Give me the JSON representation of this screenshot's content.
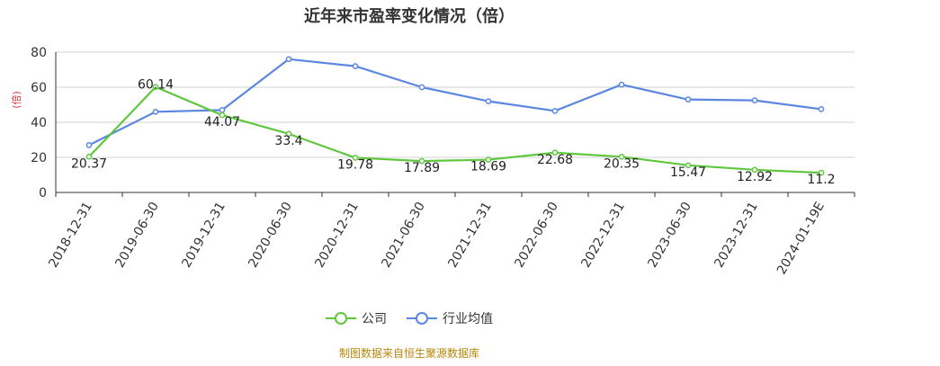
{
  "chart_data": {
    "type": "line",
    "title": "近年来市盈率变化情况（倍）",
    "ylabel": "(倍)",
    "xlabel": "",
    "ylim": [
      0,
      80
    ],
    "yticks": [
      0,
      20,
      40,
      60,
      80
    ],
    "grid": true,
    "legend_position": "bottom",
    "categories": [
      "2018-12-31",
      "2019-06-30",
      "2019-12-31",
      "2020-06-30",
      "2020-12-31",
      "2021-06-30",
      "2021-12-31",
      "2022-06-30",
      "2022-12-31",
      "2023-06-30",
      "2023-12-31",
      "2024-01-19E"
    ],
    "series": [
      {
        "name": "公司",
        "color": "#5ec73d",
        "values": [
          20.37,
          60.14,
          44.07,
          33.4,
          19.78,
          17.89,
          18.69,
          22.68,
          20.35,
          15.47,
          12.92,
          11.2
        ],
        "labels": [
          "20.37",
          "60.14",
          "44.07",
          "33.4",
          "19.78",
          "17.89",
          "18.69",
          "22.68",
          "20.35",
          "15.47",
          "12.92",
          "11.2"
        ]
      },
      {
        "name": "行业均值",
        "color": "#5b87e0",
        "values": [
          27,
          46,
          47,
          76,
          72,
          60,
          52,
          46.5,
          61.5,
          53,
          52.5,
          47.5
        ]
      }
    ]
  },
  "source_note": "制图数据来自恒生聚源数据库"
}
